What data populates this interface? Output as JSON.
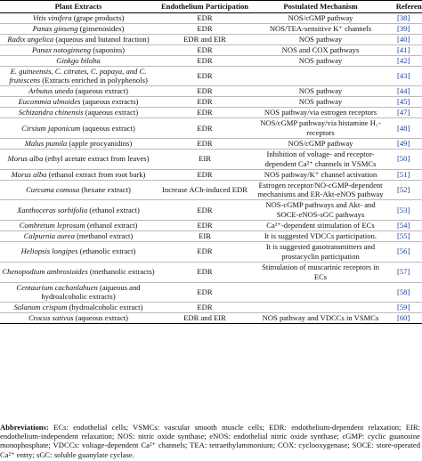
{
  "table": {
    "header": [
      "Plant Extracts",
      "Endothelium Participation",
      "Postulated Mechanism",
      "Reference"
    ],
    "rows": [
      {
        "species": "Vitis vinifera",
        "detail": "(grape products)",
        "participation": "EDR",
        "mechanism": "NOS/cGMP pathway",
        "ref": "[38]"
      },
      {
        "species": "Panax ginseng",
        "detail": "(ginsenosides)",
        "participation": "EDR",
        "mechanism": "NOS/TEA-sensitive K⁺ channels",
        "ref": "[39]"
      },
      {
        "species": "Radix angelica",
        "detail": "(aqueous and butanol fraction)",
        "participation": "EDR and EIR",
        "mechanism": "NOS pathway",
        "ref": "[40]"
      },
      {
        "species": "Panax notoginseng",
        "detail": "(saponins)",
        "participation": "EDR",
        "mechanism": "NOS and COX pathways",
        "ref": "[41]"
      },
      {
        "species": "Ginkgo biloba",
        "participation": "EDR",
        "mechanism": "NOS pathway",
        "ref": "[42]"
      },
      {
        "species": "E. guineensis, C. citrates, C. papaya, and C. frutescens",
        "detail": "(Extracts enriched in polyphenols)",
        "participation": "EDR",
        "ref": "[43]"
      },
      {
        "species": "Arbutus unedo",
        "detail": "(aqueous extract)",
        "participation": "EDR",
        "mechanism": "NOS pathway",
        "ref": "[44]"
      },
      {
        "species": "Eucommia ulmoides",
        "detail": "(aqueous extracts)",
        "participation": "EDR",
        "mechanism": "NOS pathway",
        "ref": "[45]"
      },
      {
        "species": "Schizandra chinensis",
        "detail": "(aqueous extract)",
        "participation": "EDR",
        "mechanism": "NOS pathway/via estrogen receptors",
        "ref": "[47]"
      },
      {
        "species": "Cirsium japonicum",
        "detail": "(aqueous extract)",
        "participation": "EDR",
        "mechanism": "NOS/cGMP pathway/via histamine H₁-receptors",
        "ref": "[48]"
      },
      {
        "species": "Malus pumila",
        "detail": "(apple procyanidins)",
        "participation": "EDR",
        "mechanism": "NOS/cGMP pathway",
        "ref": "[49]"
      },
      {
        "species": "Morus alba",
        "detail": "(ethyl acetate extract from leaves)",
        "participation": "EIR",
        "mechanism": "Inhibition of voltage- and receptor-dependent Ca²⁺ channels in VSMCs",
        "ref": "[50]"
      },
      {
        "species": "Morus alba",
        "detail": "(ethanol extract from root bark)",
        "participation": "EDR",
        "mechanism": "NOS pathway/K⁺ channel activation",
        "ref": "[51]"
      },
      {
        "species": "Curcuma comosa",
        "detail": "(hexane extract)",
        "participation": "Increase ACh-induced EDR",
        "mechanism": "Estrogen receptor/NO-cGMP-dependent mechanisms and ER-Akt-eNOS pathway",
        "ref": "[52]"
      },
      {
        "species": "Xanthoceras sorbifolia",
        "detail": "(ethanol extract)",
        "participation": "EDR",
        "mechanism": "NOS-cGMP pathways and Akt- and SOCE-eNOS-sGC pathways",
        "ref": "[53]"
      },
      {
        "species": "Combretum leprosum",
        "detail": "(ethanol extract)",
        "participation": "EDR",
        "mechanism": "Ca²⁺-dependent stimulation of ECs",
        "ref": "[54]"
      },
      {
        "species": "Calpurnia aurea",
        "detail": "(methanol extract)",
        "participation": "EIR",
        "mechanism": "It is suggested VDCCs participation.",
        "ref": "[55]"
      },
      {
        "species": "Heliopsis longipes",
        "detail": "(ethanolic extract)",
        "participation": "EDR",
        "mechanism": "It is suggested gasotransmitters and prostacyclin participation",
        "ref": "[56]"
      },
      {
        "species": "Chenopodium ambrosioides",
        "detail": "(methanolic extracts)",
        "participation": "EDR",
        "mechanism": "Stimulation of muscarinic receptors in ECs",
        "ref": "[57]"
      },
      {
        "species": "Centaurium cachanlahuen",
        "detail": "(aqueous and hydroalcoholic extracts)",
        "participation": "EDR",
        "ref": "[58]"
      },
      {
        "species": "Solanum crispum",
        "detail": "(hydroalcoholic extract)",
        "participation": "EDR",
        "ref": "[59]"
      },
      {
        "species": "Crocus sativus",
        "detail": "(aqueous extract)",
        "participation": "EDR and EIR",
        "mechanism": "NOS pathway and VDCCs in VSMCs",
        "ref": "[60]"
      }
    ]
  },
  "footnote": {
    "label": "Abbreviations:",
    "text": "ECs: endothelial cells; VSMCs: vascular smooth muscle cells; EDR: endothelium-dependent relaxation; EIR: endothelium-independent relaxation; NOS: nitric oxide synthase; eNOS: endothelial nitric oxide synthase; cGMP: cyclic guanosine monophosphate; VDCCs: voltage-dependent Ca²⁺ channels; TEA: tetraethylammonium; COX: cyclooxygenase; SOCE: store-operated Ca²⁺ entry; sGC: soluble guanylate cyclase."
  }
}
